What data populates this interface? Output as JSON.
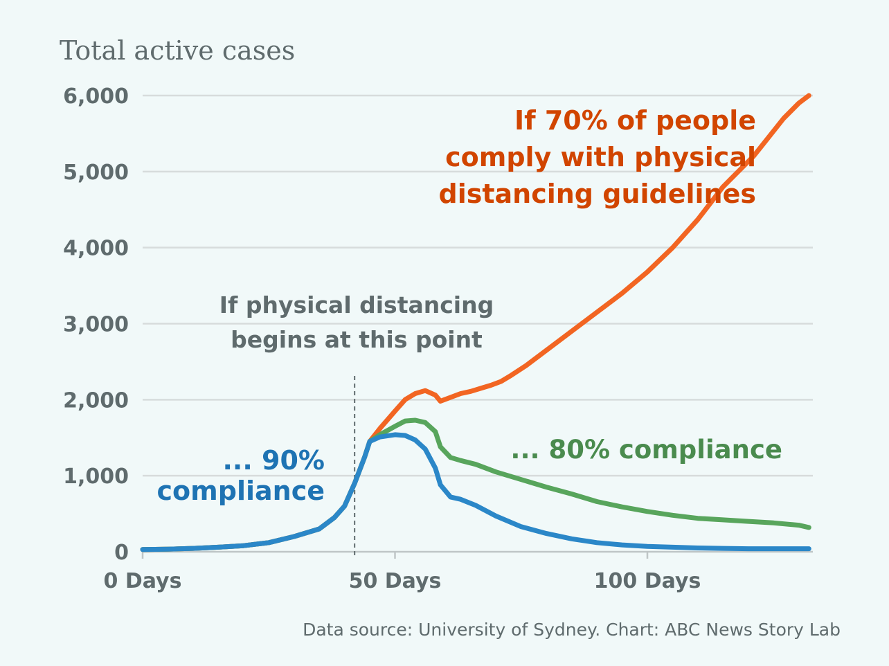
{
  "chart_data": {
    "type": "line",
    "ylabel": "Total active cases",
    "xlabel": "",
    "xlim": [
      0,
      132
    ],
    "ylim": [
      0,
      6000
    ],
    "yticks": [
      0,
      1000,
      2000,
      3000,
      4000,
      5000,
      6000
    ],
    "ytick_labels": [
      "0",
      "1,000",
      "2,000",
      "3,000",
      "4,000",
      "5,000",
      "6,000"
    ],
    "xticks": [
      0,
      50,
      100
    ],
    "xtick_labels": [
      "0 Days",
      "50 Days",
      "100 Days"
    ],
    "grid": true,
    "source": "Data source: University of Sydney. Chart: ABC News Story Lab",
    "marker": {
      "x": 42,
      "lines": [
        "If physical distancing",
        "begins at this point"
      ]
    },
    "series": [
      {
        "label_lines": [
          "If 70% of people",
          "comply with physical",
          "distancing guidelines"
        ],
        "color": "#f26522",
        "label_color": "#d14500",
        "x": [
          0,
          5,
          10,
          15,
          20,
          25,
          30,
          35,
          38,
          40,
          42,
          44,
          45,
          47,
          50,
          52,
          54,
          56,
          58,
          59,
          61,
          63,
          65,
          67,
          69,
          71,
          73,
          76,
          80,
          85,
          90,
          95,
          100,
          105,
          110,
          115,
          118,
          121,
          124,
          127,
          130,
          132
        ],
        "y": [
          30,
          35,
          45,
          60,
          80,
          120,
          200,
          300,
          450,
          600,
          900,
          1250,
          1450,
          1620,
          1850,
          2000,
          2080,
          2120,
          2060,
          1980,
          2030,
          2080,
          2110,
          2150,
          2190,
          2240,
          2320,
          2450,
          2650,
          2900,
          3150,
          3400,
          3680,
          4000,
          4370,
          4800,
          5000,
          5200,
          5450,
          5700,
          5900,
          6000
        ]
      },
      {
        "label_lines": [
          "... 80% compliance"
        ],
        "color": "#58a55c",
        "label_color": "#4a8b4e",
        "x": [
          0,
          5,
          10,
          15,
          20,
          25,
          30,
          35,
          38,
          40,
          42,
          44,
          45,
          47,
          50,
          52,
          54,
          56,
          58,
          59,
          61,
          63,
          66,
          70,
          75,
          80,
          85,
          90,
          95,
          100,
          105,
          110,
          115,
          120,
          125,
          130,
          132
        ],
        "y": [
          30,
          35,
          45,
          60,
          80,
          120,
          200,
          300,
          450,
          600,
          900,
          1250,
          1450,
          1540,
          1650,
          1720,
          1730,
          1700,
          1580,
          1380,
          1240,
          1200,
          1150,
          1050,
          950,
          850,
          760,
          660,
          590,
          530,
          480,
          440,
          420,
          400,
          380,
          350,
          320
        ]
      },
      {
        "label_lines": [
          "... 90%",
          "compliance"
        ],
        "color": "#2b87c8",
        "label_color": "#1e73b3",
        "x": [
          0,
          5,
          10,
          15,
          20,
          25,
          30,
          35,
          38,
          40,
          42,
          44,
          45,
          47,
          50,
          52,
          54,
          56,
          58,
          59,
          61,
          63,
          66,
          70,
          75,
          80,
          85,
          90,
          95,
          100,
          105,
          110,
          115,
          120,
          125,
          130,
          132
        ],
        "y": [
          30,
          35,
          45,
          60,
          80,
          120,
          200,
          300,
          450,
          600,
          900,
          1250,
          1450,
          1510,
          1540,
          1530,
          1470,
          1350,
          1100,
          880,
          720,
          690,
          610,
          470,
          330,
          240,
          170,
          120,
          90,
          70,
          60,
          50,
          45,
          40,
          40,
          40,
          40
        ]
      }
    ]
  }
}
